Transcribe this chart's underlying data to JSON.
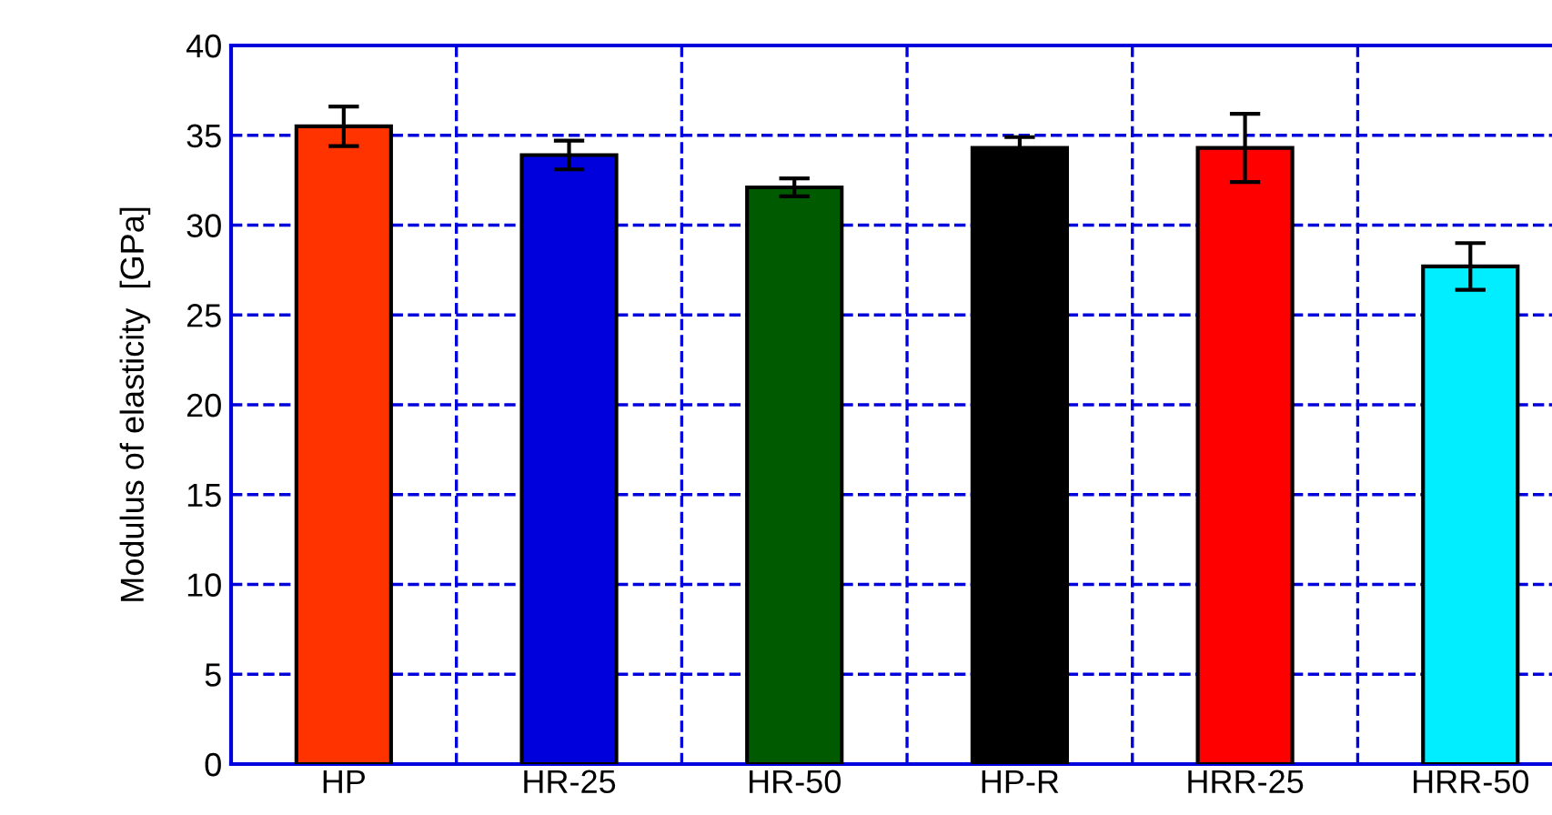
{
  "chart_data": {
    "type": "bar",
    "ylabel": "Modulus of elasticity  [GPa]",
    "categories": [
      "HP",
      "HR-25",
      "HR-50",
      "HP-R",
      "HRR-25",
      "HRR-50"
    ],
    "values": [
      35.5,
      33.9,
      32.1,
      34.3,
      34.3,
      27.7
    ],
    "colors": [
      "#ff3300",
      "#0000dd",
      "#005a00",
      "#000000",
      "#ff0000",
      "#00eeff"
    ],
    "errors": [
      1.1,
      0.8,
      0.5,
      0.6,
      1.9,
      1.3
    ],
    "ylim": [
      0,
      40
    ],
    "yticks": [
      0,
      5,
      10,
      15,
      20,
      25,
      30,
      35,
      40
    ],
    "grid": true
  }
}
